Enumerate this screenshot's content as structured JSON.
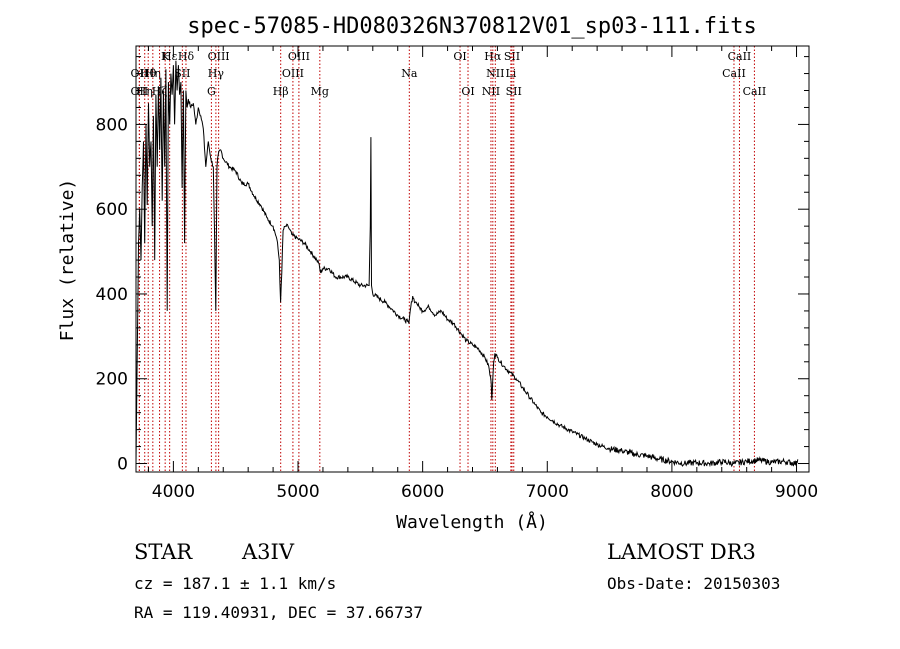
{
  "chart_data": {
    "type": "line",
    "title": "spec-57085-HD080326N370812V01_sp03-111.fits",
    "xlabel": "Wavelength (Å)",
    "ylabel": "Flux (relative)",
    "xlim": [
      3700,
      9100
    ],
    "ylim": [
      -20,
      985
    ],
    "xticks": [
      4000,
      5000,
      6000,
      7000,
      8000,
      9000
    ],
    "yticks": [
      0,
      200,
      400,
      600,
      800
    ],
    "series": [
      {
        "name": "spectrum",
        "x": [
          3700,
          3710,
          3720,
          3730,
          3740,
          3750,
          3760,
          3770,
          3780,
          3790,
          3800,
          3810,
          3820,
          3830,
          3840,
          3850,
          3860,
          3870,
          3880,
          3890,
          3900,
          3910,
          3920,
          3930,
          3940,
          3950,
          3960,
          3970,
          3980,
          3990,
          4000,
          4010,
          4020,
          4030,
          4040,
          4050,
          4060,
          4070,
          4080,
          4090,
          4100,
          4110,
          4120,
          4140,
          4160,
          4180,
          4200,
          4220,
          4240,
          4260,
          4280,
          4300,
          4320,
          4330,
          4340,
          4350,
          4360,
          4380,
          4400,
          4450,
          4500,
          4550,
          4600,
          4650,
          4700,
          4750,
          4800,
          4830,
          4850,
          4860,
          4870,
          4880,
          4900,
          4920,
          4950,
          5000,
          5050,
          5100,
          5150,
          5170,
          5180,
          5200,
          5250,
          5300,
          5400,
          5500,
          5570,
          5580,
          5585,
          5590,
          5600,
          5650,
          5700,
          5750,
          5800,
          5850,
          5880,
          5890,
          5900,
          5920,
          5940,
          5950,
          5970,
          6000,
          6050,
          6100,
          6150,
          6200,
          6250,
          6300,
          6350,
          6400,
          6450,
          6500,
          6530,
          6550,
          6555,
          6563,
          6570,
          6580,
          6600,
          6650,
          6700,
          6750,
          6800,
          6850,
          6900,
          6950,
          7000,
          7100,
          7200,
          7300,
          7400,
          7500,
          7600,
          7700,
          7800,
          7900,
          8000,
          8100,
          8200,
          8300,
          8400,
          8500,
          8600,
          8700,
          8800,
          8900,
          9000,
          9010
        ],
        "values": [
          0,
          250,
          520,
          600,
          480,
          650,
          760,
          520,
          800,
          610,
          850,
          700,
          760,
          560,
          820,
          480,
          870,
          700,
          890,
          740,
          910,
          620,
          880,
          700,
          930,
          360,
          900,
          800,
          920,
          870,
          940,
          800,
          950,
          880,
          940,
          870,
          900,
          650,
          880,
          520,
          880,
          840,
          860,
          840,
          850,
          800,
          840,
          820,
          790,
          700,
          760,
          720,
          700,
          550,
          360,
          700,
          730,
          740,
          720,
          700,
          690,
          660,
          660,
          630,
          610,
          580,
          560,
          530,
          480,
          380,
          450,
          550,
          560,
          560,
          540,
          530,
          520,
          500,
          480,
          470,
          450,
          460,
          460,
          440,
          440,
          420,
          420,
          560,
          770,
          420,
          400,
          390,
          380,
          365,
          350,
          340,
          335,
          330,
          360,
          395,
          380,
          380,
          370,
          360,
          370,
          350,
          360,
          340,
          330,
          310,
          290,
          280,
          270,
          250,
          230,
          190,
          150,
          200,
          240,
          260,
          250,
          230,
          215,
          200,
          180,
          160,
          140,
          120,
          110,
          90,
          75,
          60,
          45,
          35,
          30,
          22,
          18,
          10,
          5,
          0,
          2,
          0,
          4,
          0,
          5,
          8,
          3,
          5,
          0,
          10
        ]
      }
    ],
    "spectral_lines": [
      {
        "label": "Hδ",
        "wave": 4101,
        "row": 1
      },
      {
        "label": "Hε",
        "wave": 3970,
        "row": 1
      },
      {
        "label": "K",
        "wave": 3934,
        "row": 1
      },
      {
        "label": "OIII",
        "wave": 4363,
        "row": 1
      },
      {
        "label": "OIII",
        "wave": 5007,
        "row": 1
      },
      {
        "label": "OI",
        "wave": 6300,
        "row": 1
      },
      {
        "label": "Hα",
        "wave": 6563,
        "row": 1
      },
      {
        "label": "SII",
        "wave": 6717,
        "row": 1
      },
      {
        "label": "CaII",
        "wave": 8542,
        "row": 1
      },
      {
        "label": "OII",
        "wave": 3727,
        "row": 2
      },
      {
        "label": "Hθ",
        "wave": 3798,
        "row": 2
      },
      {
        "label": "Hη",
        "wave": 3835,
        "row": 2
      },
      {
        "label": "SII",
        "wave": 4072,
        "row": 2
      },
      {
        "label": "Hγ",
        "wave": 4341,
        "row": 2
      },
      {
        "label": "OIII",
        "wave": 4959,
        "row": 2
      },
      {
        "label": "Na",
        "wave": 5893,
        "row": 2
      },
      {
        "label": "NII",
        "wave": 6583,
        "row": 2
      },
      {
        "label": "Li",
        "wave": 6708,
        "row": 2
      },
      {
        "label": "CaII",
        "wave": 8498,
        "row": 2
      },
      {
        "label": "OII",
        "wave": 3727,
        "row": 3
      },
      {
        "label": "Hη",
        "wave": 3770,
        "row": 3
      },
      {
        "label": "Hζ",
        "wave": 3889,
        "row": 3
      },
      {
        "label": "G",
        "wave": 4305,
        "row": 3
      },
      {
        "label": "Hβ",
        "wave": 4861,
        "row": 3
      },
      {
        "label": "Mg",
        "wave": 5175,
        "row": 3
      },
      {
        "label": "OI",
        "wave": 6364,
        "row": 3
      },
      {
        "label": "NII",
        "wave": 6548,
        "row": 3
      },
      {
        "label": "SII",
        "wave": 6731,
        "row": 3
      },
      {
        "label": "CaII",
        "wave": 8662,
        "row": 3
      }
    ]
  },
  "info": {
    "object_class": "STAR",
    "subclass": "A3IV",
    "survey": "LAMOST DR3",
    "cz": "cz = 187.1 ± 1.1 km/s",
    "obs_date": "Obs-Date: 20150303",
    "coords": "RA = 119.40931, DEC =  37.66737"
  }
}
